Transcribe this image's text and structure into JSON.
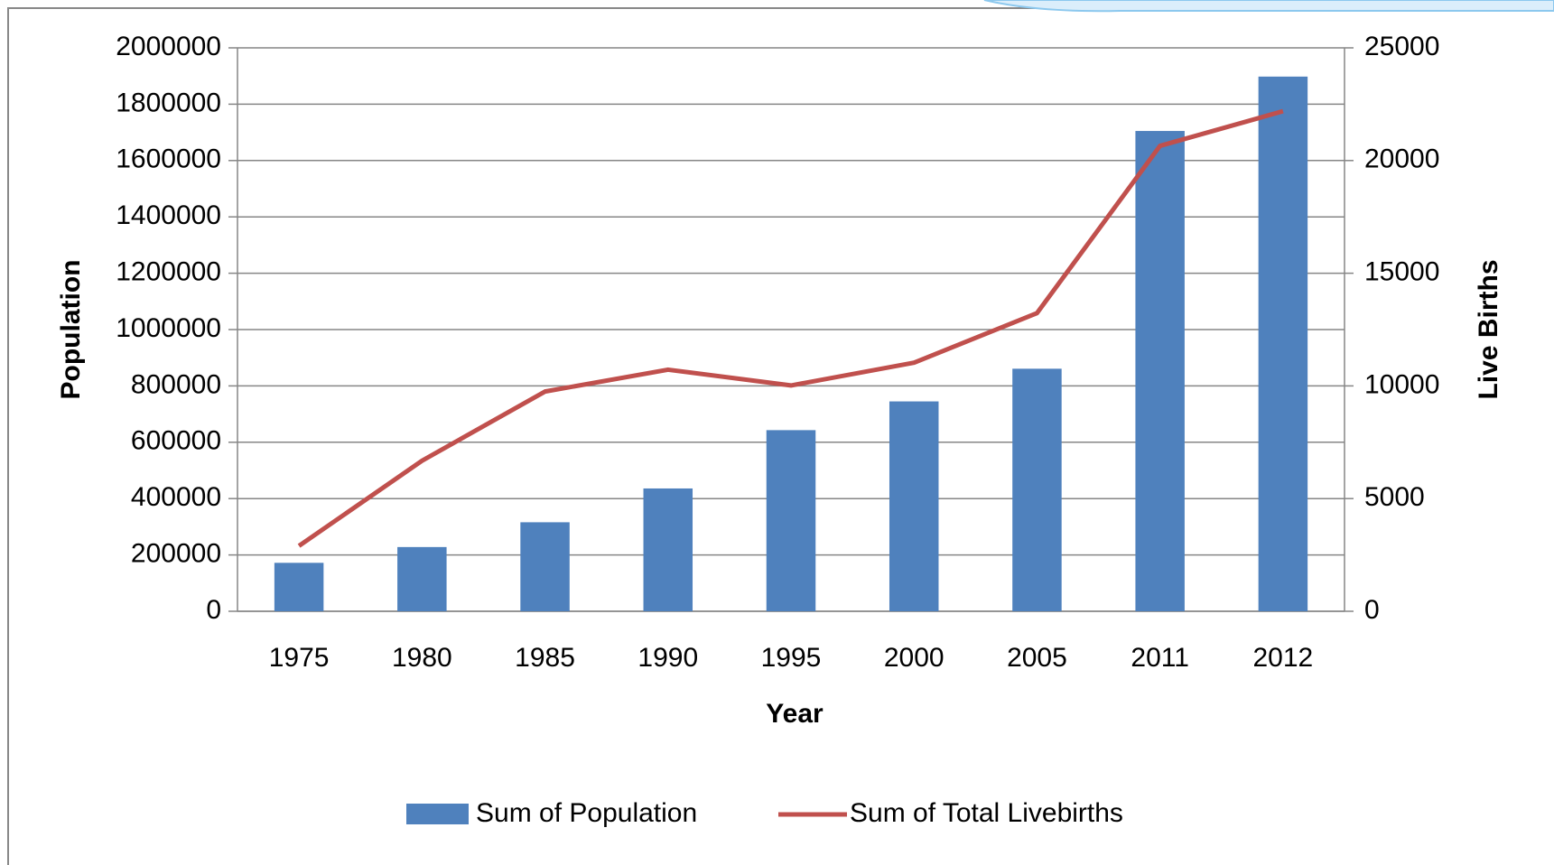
{
  "chart_data": {
    "type": "bar",
    "categories": [
      "1975",
      "1980",
      "1985",
      "1990",
      "1995",
      "2000",
      "2005",
      "2011",
      "2012"
    ],
    "x_label": "Year",
    "y_label": "Population",
    "y2_label": "Live Births",
    "series": [
      {
        "name": "Sum of Population",
        "type": "bar",
        "color": "#4f81bd",
        "values": [
          172000,
          228000,
          316000,
          436000,
          643000,
          745000,
          861000,
          1705000,
          1898000
        ]
      },
      {
        "name": "Sum of Total Livebirths",
        "type": "line",
        "axis": "y2",
        "color": "#c0504d",
        "values": [
          2900,
          6680,
          9750,
          10720,
          10020,
          11030,
          13230,
          20650,
          22190
        ]
      }
    ],
    "ylim": [
      0,
      2000000
    ],
    "yticks": [
      0,
      200000,
      400000,
      600000,
      800000,
      1000000,
      1200000,
      1400000,
      1600000,
      1800000,
      2000000
    ],
    "y2lim": [
      0,
      25000
    ],
    "y2ticks": [
      0,
      5000,
      10000,
      15000,
      20000,
      25000
    ],
    "grid": true,
    "legend": "bottom"
  }
}
